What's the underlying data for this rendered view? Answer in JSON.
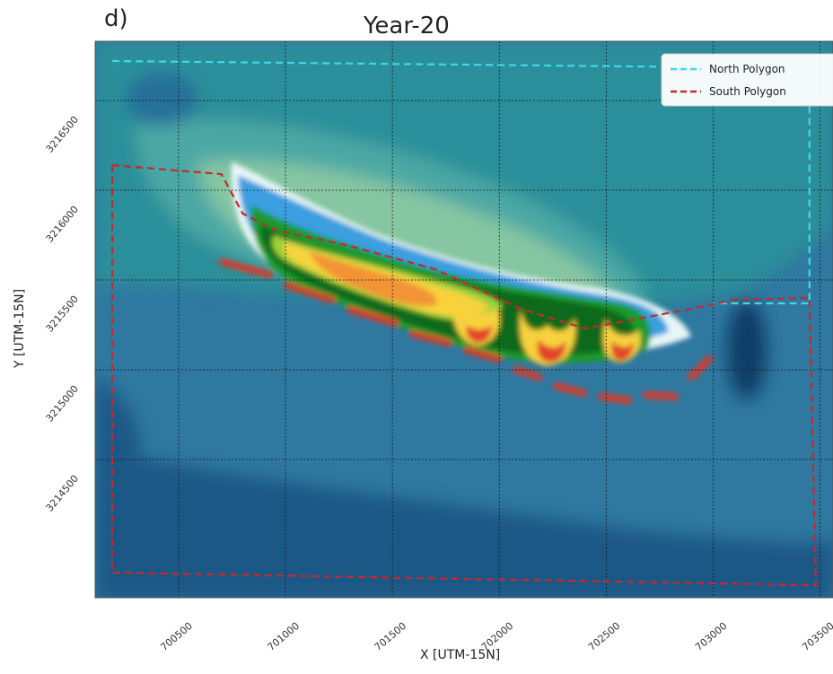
{
  "panel_label": "d)",
  "chart_data": {
    "type": "contour",
    "title": "Year-20",
    "xlabel": "X [UTM-15N]",
    "ylabel": "Y [UTM-15N]",
    "xlim": [
      700110,
      703560
    ],
    "ylim": [
      3213730,
      3216830
    ],
    "x_ticks": [
      700500,
      701000,
      701500,
      702000,
      702500,
      703000,
      703500
    ],
    "x_tick_labels": [
      "700500",
      "701000",
      "701500",
      "702000",
      "702500",
      "703000",
      "703500"
    ],
    "y_ticks": [
      3214500,
      3215000,
      3215500,
      3216000,
      3216500
    ],
    "y_tick_labels": [
      "3214500",
      "3215000",
      "3215500",
      "3216000",
      "3216500"
    ],
    "grid": true,
    "legend_position": "top-right",
    "series": [
      {
        "name": "North Polygon",
        "style": "dashed",
        "color": "#3fd8e8",
        "x": [
          700190,
          703450,
          703450,
          703000
        ],
        "y": [
          3216720,
          3216680,
          3215370,
          3215370
        ]
      },
      {
        "name": "South Polygon",
        "style": "dashed",
        "color": "#c8282c",
        "x": [
          700190,
          700700,
          700800,
          700950,
          701300,
          701700,
          702100,
          702400,
          702900,
          703100,
          703450,
          703480,
          700190,
          700190
        ],
        "y": [
          3216140,
          3216090,
          3215870,
          3215780,
          3215690,
          3215560,
          3215340,
          3215230,
          3215340,
          3215390,
          3215400,
          3213800,
          3213870,
          3216140
        ]
      }
    ],
    "colors": {
      "deep": "#10406a",
      "background": "#2f78a0",
      "teal": "#2b8f9a",
      "light_teal": "#4ca8a4",
      "pale_green": "#86c6a2",
      "white": "#e9f6f6",
      "sky": "#3a9fe0",
      "green": "#1f9a2a",
      "dark_green": "#0e6a1c",
      "lime": "#9fd23a",
      "yellow": "#f7d23c",
      "orange": "#f29435",
      "red": "#e2442a"
    }
  }
}
